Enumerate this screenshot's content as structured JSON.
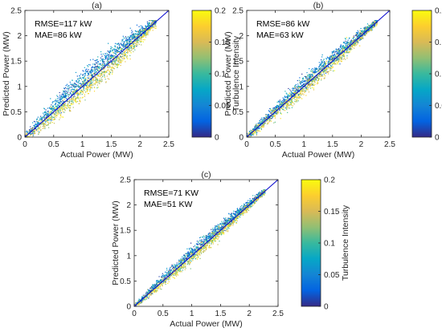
{
  "chart_data": [
    {
      "type": "scatter",
      "panel_label": "(a)",
      "xlabel": "Actual Power (MW)",
      "ylabel": "Predicted Power (MW)",
      "xlim": [
        0,
        2.5
      ],
      "ylim": [
        0,
        2.5
      ],
      "xticks": [
        "0",
        "0.5",
        "1",
        "1.5",
        "2",
        "2.5"
      ],
      "yticks": [
        "0",
        "0.5",
        "1",
        "1.5",
        "2",
        "2.5"
      ],
      "annotations": [
        "RMSE=117 kW",
        "MAE=86 kW"
      ],
      "reference_line": {
        "x": [
          0,
          2.5
        ],
        "y": [
          0,
          2.5
        ],
        "color": "#0000cc"
      },
      "colorbar": {
        "label": "Turbulence Intensity",
        "range": [
          0,
          0.2
        ],
        "ticks": [
          "0",
          "0.05",
          "0.1",
          "0.15",
          "0.2"
        ],
        "colormap": "parula"
      },
      "scatter_spread": 0.1,
      "points_approx": 2200
    },
    {
      "type": "scatter",
      "panel_label": "(b)",
      "xlabel": "Actual Power (MW)",
      "ylabel": "Predicted Power (MW)",
      "xlim": [
        0,
        2.5
      ],
      "ylim": [
        0,
        2.5
      ],
      "xticks": [
        "0",
        "0.5",
        "1",
        "1.5",
        "2",
        "2.5"
      ],
      "yticks": [
        "0",
        "0.5",
        "1",
        "1.5",
        "2",
        "2.5"
      ],
      "annotations": [
        "RMSE=86 kW",
        "MAE=63 kW"
      ],
      "reference_line": {
        "x": [
          0,
          2.5
        ],
        "y": [
          0,
          2.5
        ],
        "color": "#0000cc"
      },
      "colorbar": {
        "label": "Turbulence Intensity",
        "range": [
          0,
          0.2
        ],
        "ticks": [
          "0",
          "0.05",
          "0.1",
          "0.15",
          "0.2"
        ],
        "colormap": "parula"
      },
      "scatter_spread": 0.075,
      "points_approx": 2200
    },
    {
      "type": "scatter",
      "panel_label": "(c)",
      "xlabel": "Actual Power (MW)",
      "ylabel": "Predicted Power (MW)",
      "xlim": [
        0,
        2.5
      ],
      "ylim": [
        0,
        2.5
      ],
      "xticks": [
        "0",
        "0.5",
        "1",
        "1.5",
        "2",
        "2.5"
      ],
      "yticks": [
        "0",
        "0.5",
        "1",
        "1.5",
        "2",
        "2.5"
      ],
      "annotations": [
        "RMSE=71 KW",
        "MAE=51 KW"
      ],
      "reference_line": {
        "x": [
          0,
          2.5
        ],
        "y": [
          0,
          2.5
        ],
        "color": "#0000cc"
      },
      "colorbar": {
        "label": "Turbulence Intensity",
        "range": [
          0,
          0.2
        ],
        "ticks": [
          "0",
          "0.05",
          "0.1",
          "0.15",
          "0.2"
        ],
        "colormap": "parula"
      },
      "scatter_spread": 0.06,
      "points_approx": 2200
    }
  ]
}
